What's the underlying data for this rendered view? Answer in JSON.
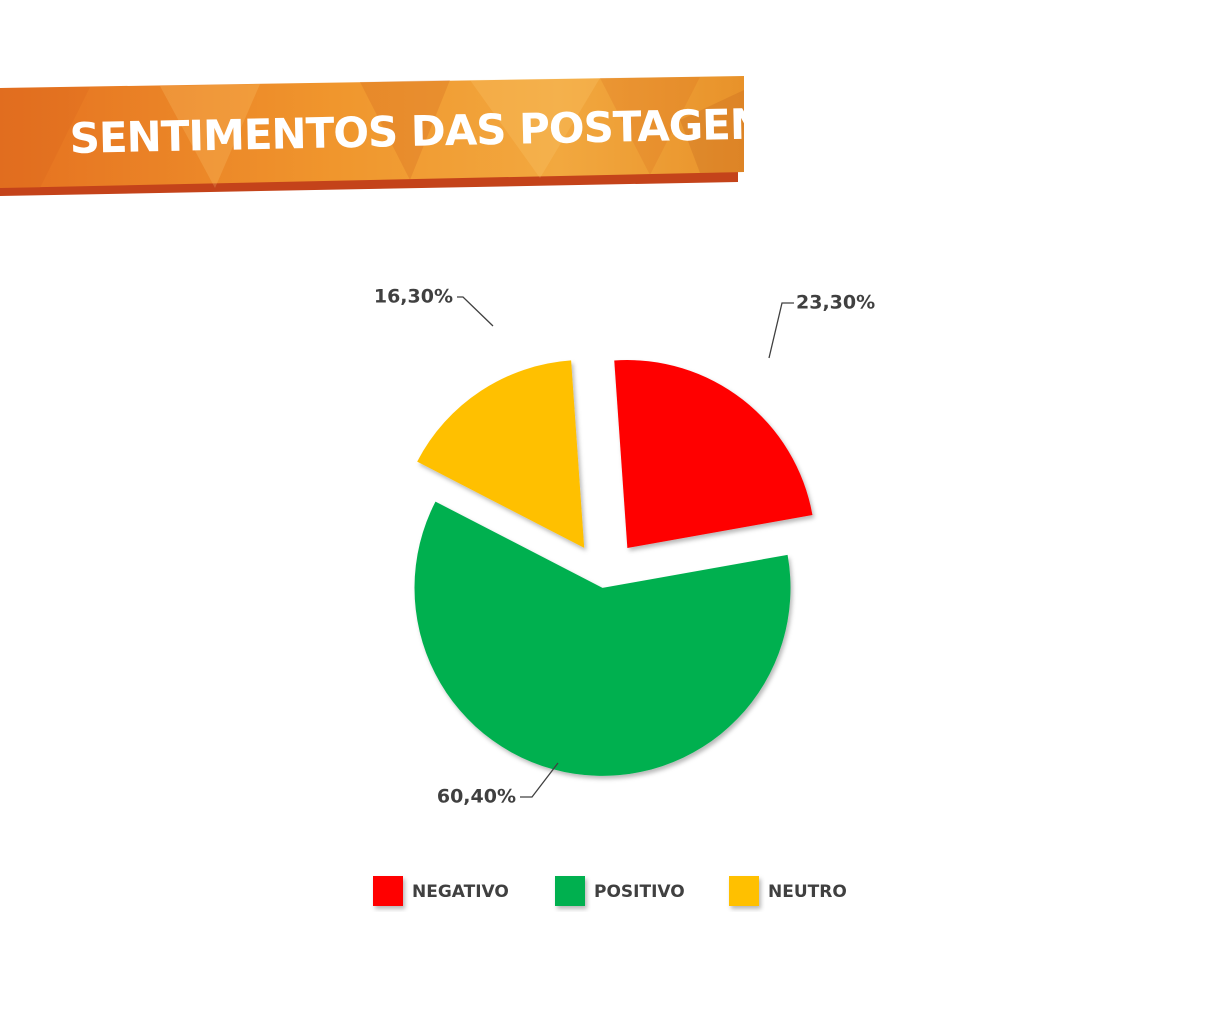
{
  "header": {
    "title": "SENTIMENTOS DAS POSTAGENS"
  },
  "chart_data": {
    "type": "pie",
    "title": "SENTIMENTOS DAS POSTAGENS",
    "categories": [
      "NEGATIVO",
      "POSITIVO",
      "NEUTRO"
    ],
    "values": [
      23.3,
      60.4,
      16.3
    ],
    "data_labels": [
      "23,30%",
      "60,40%",
      "16,30%"
    ],
    "colors": [
      "#FF0000",
      "#00B050",
      "#FFC000"
    ],
    "exploded": true,
    "legend_position": "bottom"
  },
  "legend": {
    "items": [
      {
        "label": "NEGATIVO",
        "color": "#FF0000"
      },
      {
        "label": "POSITIVO",
        "color": "#00B050"
      },
      {
        "label": "NEUTRO",
        "color": "#FFC000"
      }
    ]
  },
  "theme": {
    "banner_colors": [
      "#E8731F",
      "#F29C2E",
      "#EFA23A",
      "#E07A22"
    ],
    "banner_shadow": "#C4431A"
  }
}
